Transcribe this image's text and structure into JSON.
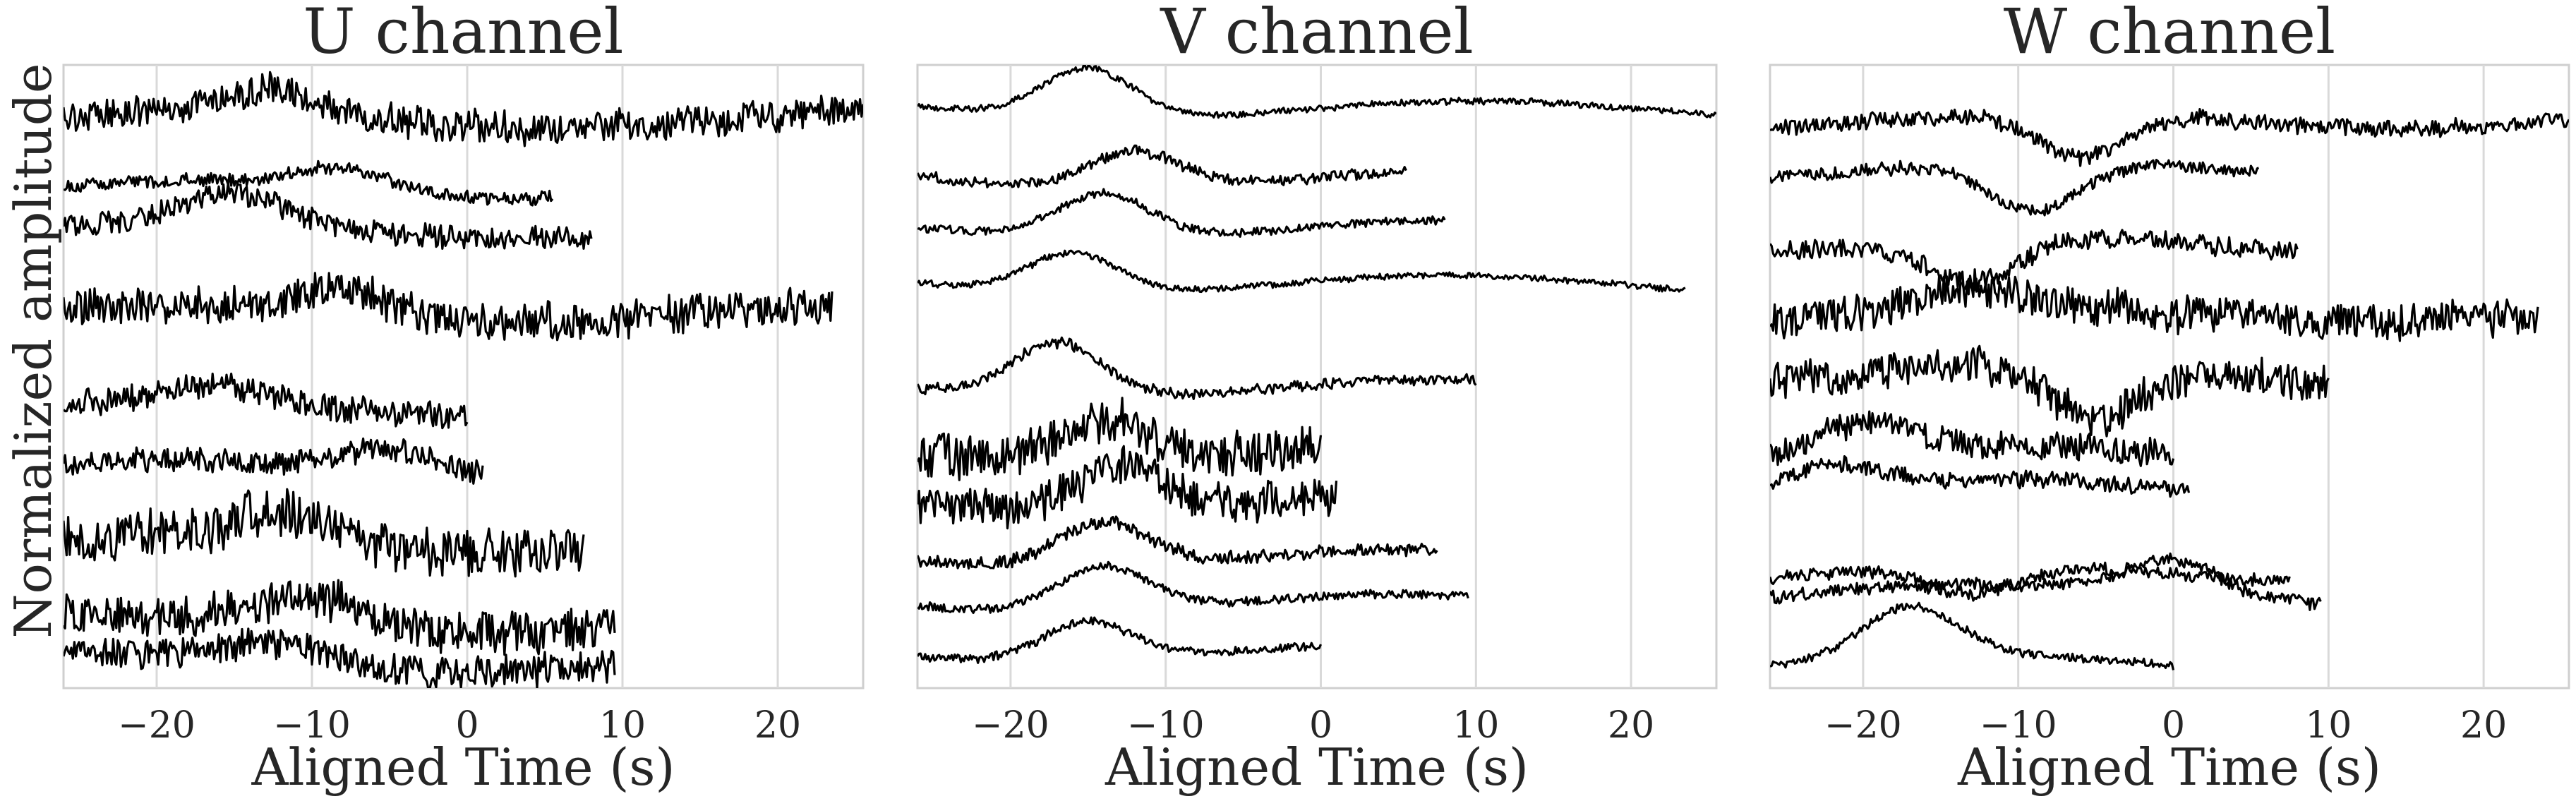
{
  "figure": {
    "ylabel": "Normalized amplitude"
  },
  "chart_data": [
    {
      "type": "line",
      "title": "U channel",
      "xlabel": "Aligned Time (s)",
      "ylabel": "Normalized amplitude",
      "xlim": [
        -26,
        25.5
      ],
      "xticks": [
        -20,
        -10,
        0,
        10,
        20
      ],
      "xtick_labels": [
        "−20",
        "−10",
        "0",
        "10",
        "20"
      ],
      "grid": "vertical",
      "series": [
        {
          "offset": 11.4,
          "x_end": 25.5,
          "peak_t": -13,
          "peak_amp": 0.45,
          "noise": 0.3,
          "valley": false
        },
        {
          "offset": 10.0,
          "x_end": 5.5,
          "peak_t": -8,
          "peak_amp": 0.4,
          "noise": 0.12,
          "valley": false
        },
        {
          "offset": 9.2,
          "x_end": 8.0,
          "peak_t": -15,
          "peak_amp": 0.55,
          "noise": 0.22,
          "valley": false
        },
        {
          "offset": 7.5,
          "x_end": 23.5,
          "peak_t": -8,
          "peak_amp": 0.5,
          "noise": 0.35,
          "valley": false
        },
        {
          "offset": 5.6,
          "x_end": 0.0,
          "peak_t": -16,
          "peak_amp": 0.3,
          "noise": 0.25,
          "valley": false
        },
        {
          "offset": 4.4,
          "x_end": 1.0,
          "peak_t": -5,
          "peak_amp": 0.5,
          "noise": 0.22,
          "valley": false
        },
        {
          "offset": 2.9,
          "x_end": 7.5,
          "peak_t": -12,
          "peak_amp": 0.6,
          "noise": 0.45,
          "valley": false
        },
        {
          "offset": 1.3,
          "x_end": 9.5,
          "peak_t": -10,
          "peak_amp": 0.55,
          "noise": 0.4,
          "valley": false
        },
        {
          "offset": 0.5,
          "x_end": 9.5,
          "peak_t": -12,
          "peak_amp": 0.4,
          "noise": 0.3,
          "valley": false
        }
      ]
    },
    {
      "type": "line",
      "title": "V channel",
      "xlabel": "Aligned Time (s)",
      "xlim": [
        -26,
        25.5
      ],
      "xticks": [
        -20,
        -10,
        0,
        10,
        20
      ],
      "xtick_labels": [
        "−20",
        "−10",
        "0",
        "10",
        "20"
      ],
      "grid": "vertical",
      "series": [
        {
          "offset": 11.6,
          "x_end": 25.5,
          "peak_t": -15,
          "peak_amp": 1.0,
          "noise": 0.06,
          "valley": false
        },
        {
          "offset": 10.2,
          "x_end": 5.5,
          "peak_t": -12,
          "peak_amp": 0.75,
          "noise": 0.1,
          "valley": false
        },
        {
          "offset": 9.2,
          "x_end": 8.0,
          "peak_t": -14,
          "peak_amp": 0.9,
          "noise": 0.08,
          "valley": false
        },
        {
          "offset": 8.1,
          "x_end": 23.5,
          "peak_t": -16,
          "peak_amp": 0.8,
          "noise": 0.06,
          "valley": false
        },
        {
          "offset": 6.0,
          "x_end": 10.0,
          "peak_t": -17,
          "peak_amp": 1.1,
          "noise": 0.1,
          "valley": false
        },
        {
          "offset": 4.7,
          "x_end": 0.0,
          "peak_t": -14,
          "peak_amp": 0.9,
          "noise": 0.4,
          "valley": false
        },
        {
          "offset": 3.7,
          "x_end": 1.0,
          "peak_t": -13,
          "peak_amp": 0.9,
          "noise": 0.4,
          "valley": false
        },
        {
          "offset": 2.6,
          "x_end": 7.5,
          "peak_t": -14,
          "peak_amp": 0.9,
          "noise": 0.12,
          "valley": false
        },
        {
          "offset": 1.7,
          "x_end": 9.5,
          "peak_t": -14,
          "peak_amp": 0.9,
          "noise": 0.08,
          "valley": false
        },
        {
          "offset": 0.7,
          "x_end": 0.0,
          "peak_t": -15,
          "peak_amp": 0.8,
          "noise": 0.08,
          "valley": false
        }
      ]
    },
    {
      "type": "line",
      "title": "W channel",
      "xlabel": "Aligned Time (s)",
      "xlim": [
        -26,
        25.5
      ],
      "xticks": [
        -20,
        -10,
        0,
        10,
        20
      ],
      "xtick_labels": [
        "−20",
        "−10",
        "0",
        "10",
        "20"
      ],
      "grid": "vertical",
      "series": [
        {
          "offset": 11.4,
          "x_end": 25.5,
          "peak_t": -6,
          "peak_amp": 0.9,
          "noise": 0.15,
          "valley": true
        },
        {
          "offset": 10.4,
          "x_end": 5.5,
          "peak_t": -9,
          "peak_amp": 1.0,
          "noise": 0.12,
          "valley": true
        },
        {
          "offset": 8.9,
          "x_end": 8.0,
          "peak_t": -13,
          "peak_amp": 0.9,
          "noise": 0.18,
          "valley": true
        },
        {
          "offset": 7.5,
          "x_end": 23.5,
          "peak_t": -14,
          "peak_amp": 0.4,
          "noise": 0.35,
          "valley": false
        },
        {
          "offset": 6.3,
          "x_end": 10.0,
          "peak_t": -5,
          "peak_amp": 1.0,
          "noise": 0.35,
          "valley": true
        },
        {
          "offset": 4.7,
          "x_end": 0.0,
          "peak_t": -20,
          "peak_amp": 0.6,
          "noise": 0.25,
          "valley": false
        },
        {
          "offset": 4.0,
          "x_end": 1.0,
          "peak_t": -22,
          "peak_amp": 0.5,
          "noise": 0.15,
          "valley": false
        },
        {
          "offset": 2.3,
          "x_end": 7.5,
          "peak_t": -13,
          "peak_amp": 0.6,
          "noise": 0.12,
          "valley": true
        },
        {
          "offset": 1.9,
          "x_end": 9.5,
          "peak_t": 0,
          "peak_amp": 0.7,
          "noise": 0.12,
          "valley": false
        },
        {
          "offset": 0.5,
          "x_end": 0.0,
          "peak_t": -17,
          "peak_amp": 1.0,
          "noise": 0.08,
          "valley": false
        }
      ]
    }
  ]
}
